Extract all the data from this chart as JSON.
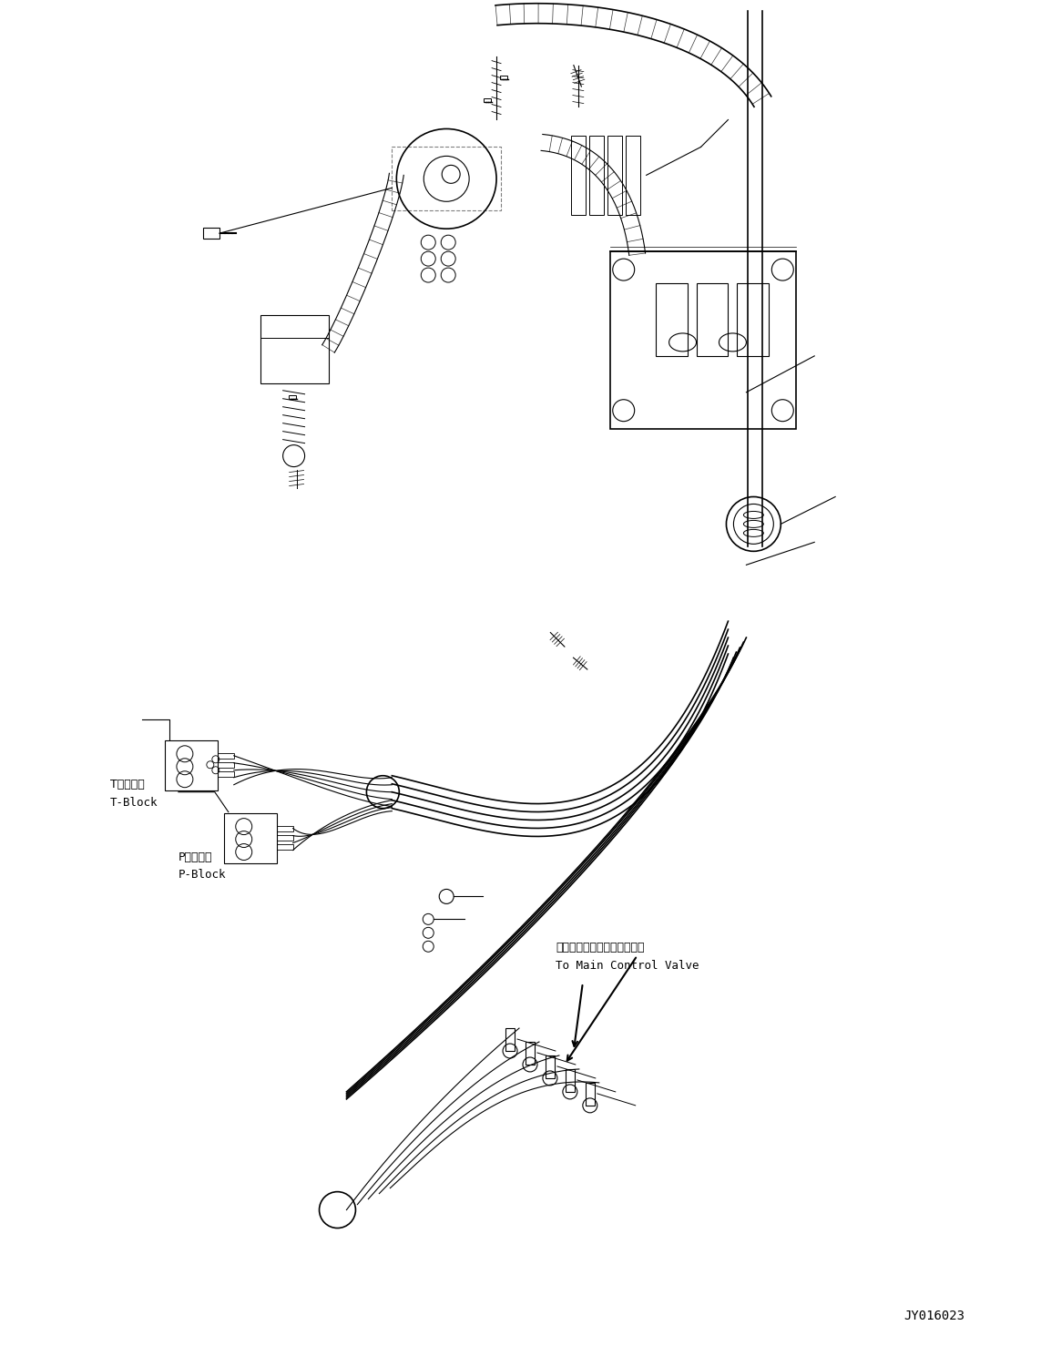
{
  "bg_color": "#ffffff",
  "fig_width": 11.43,
  "fig_height": 14.89,
  "dpi": 100,
  "diagram_code": "JY016023",
  "labels": {
    "t_block_jp": "Tブロック",
    "t_block_en": "T-Block",
    "p_block_jp": "Pブロック",
    "p_block_en": "P-Block",
    "main_valve_jp": "メインコントロールバルブへ",
    "main_valve_en": "To Main Control Valve"
  }
}
